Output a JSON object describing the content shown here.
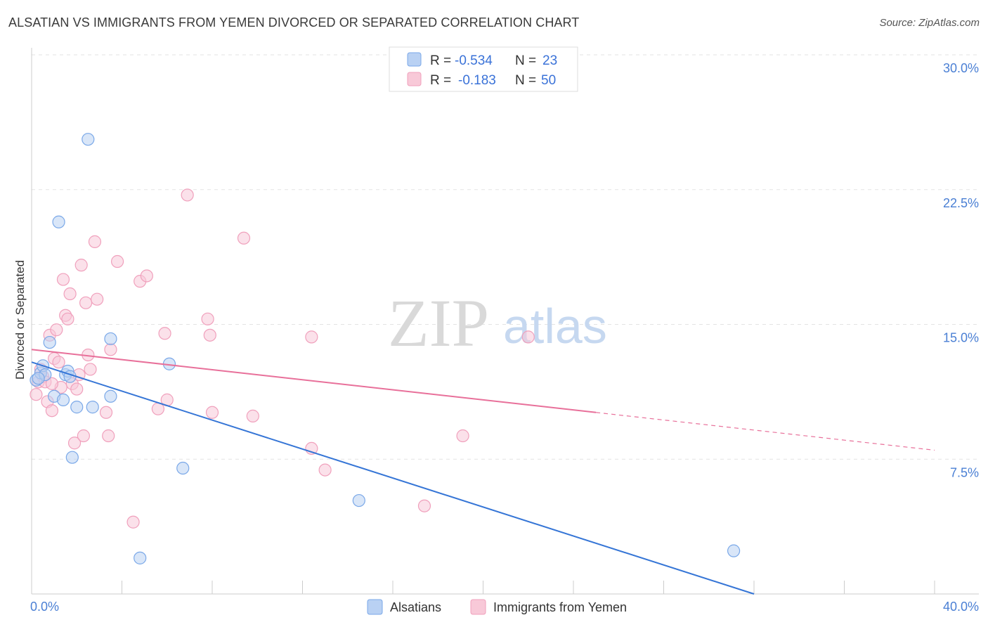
{
  "title": "ALSATIAN VS IMMIGRANTS FROM YEMEN DIVORCED OR SEPARATED CORRELATION CHART",
  "source": "Source: ZipAtlas.com",
  "watermark": {
    "zip": "ZIP",
    "atlas": "atlas"
  },
  "colors": {
    "blue": "#7aa8e8",
    "blue_line": "#3575d6",
    "blue_fill": "#b9d1f3",
    "pink": "#f0a0bc",
    "pink_line": "#e8709a",
    "pink_fill": "#f8c9d8",
    "axis_text": "#4a7fd4"
  },
  "legend": {
    "rows": [
      {
        "r_label": "R =",
        "r_value": "-0.534",
        "n_label": "N =",
        "n_value": "23"
      },
      {
        "r_label": "R =",
        "r_value": "-0.183",
        "n_label": "N =",
        "n_value": "50"
      }
    ]
  },
  "chart_data": {
    "type": "scatter",
    "title": "ALSATIAN VS IMMIGRANTS FROM YEMEN DIVORCED OR SEPARATED CORRELATION CHART",
    "xlabel": "",
    "ylabel": "Divorced or Separated",
    "xlim": [
      0,
      40
    ],
    "ylim": [
      0,
      30
    ],
    "x_tick_labels": [
      "0.0%",
      "40.0%"
    ],
    "y_ticks": [
      7.5,
      15.0,
      22.5,
      30.0
    ],
    "y_tick_labels": [
      "7.5%",
      "15.0%",
      "22.5%",
      "30.0%"
    ],
    "series": [
      {
        "name": "Alsatians",
        "color": "#7aa8e8",
        "points": [
          [
            0.2,
            11.9
          ],
          [
            0.4,
            12.3
          ],
          [
            0.5,
            12.7
          ],
          [
            0.6,
            12.2
          ],
          [
            0.8,
            14.0
          ],
          [
            1.0,
            11.0
          ],
          [
            1.4,
            10.8
          ],
          [
            1.5,
            12.2
          ],
          [
            1.6,
            12.4
          ],
          [
            1.7,
            12.1
          ],
          [
            2.0,
            10.4
          ],
          [
            1.2,
            20.7
          ],
          [
            1.8,
            7.6
          ],
          [
            2.5,
            25.3
          ],
          [
            2.7,
            10.4
          ],
          [
            3.5,
            11.0
          ],
          [
            3.5,
            14.2
          ],
          [
            4.8,
            2.0
          ],
          [
            6.1,
            12.8
          ],
          [
            6.7,
            7.0
          ],
          [
            14.5,
            5.2
          ],
          [
            31.1,
            2.4
          ],
          [
            0.3,
            12.0
          ]
        ],
        "trend": {
          "x": [
            0,
            32.0
          ],
          "y": [
            12.9,
            0.0
          ],
          "style": "solid"
        }
      },
      {
        "name": "Immigrants from Yemen",
        "color": "#f0a0bc",
        "points": [
          [
            0.2,
            11.1
          ],
          [
            0.3,
            11.8
          ],
          [
            0.4,
            12.5
          ],
          [
            0.5,
            12.1
          ],
          [
            0.6,
            11.8
          ],
          [
            0.7,
            10.7
          ],
          [
            0.8,
            14.4
          ],
          [
            0.9,
            10.2
          ],
          [
            1.0,
            13.1
          ],
          [
            1.1,
            14.7
          ],
          [
            1.2,
            12.9
          ],
          [
            1.3,
            11.5
          ],
          [
            1.4,
            17.5
          ],
          [
            1.5,
            15.5
          ],
          [
            1.6,
            15.3
          ],
          [
            1.7,
            16.7
          ],
          [
            1.8,
            11.7
          ],
          [
            1.9,
            8.4
          ],
          [
            2.0,
            11.4
          ],
          [
            2.1,
            12.2
          ],
          [
            2.2,
            18.3
          ],
          [
            2.3,
            8.8
          ],
          [
            2.4,
            16.2
          ],
          [
            2.5,
            13.3
          ],
          [
            2.6,
            12.5
          ],
          [
            2.8,
            19.6
          ],
          [
            2.9,
            16.4
          ],
          [
            3.3,
            10.1
          ],
          [
            3.4,
            8.8
          ],
          [
            3.5,
            13.6
          ],
          [
            3.8,
            18.5
          ],
          [
            4.5,
            4.0
          ],
          [
            4.8,
            17.4
          ],
          [
            5.1,
            17.7
          ],
          [
            5.6,
            10.3
          ],
          [
            5.9,
            14.5
          ],
          [
            6.0,
            10.8
          ],
          [
            6.9,
            22.2
          ],
          [
            7.8,
            15.3
          ],
          [
            7.9,
            14.4
          ],
          [
            8.0,
            10.1
          ],
          [
            9.4,
            19.8
          ],
          [
            9.8,
            9.9
          ],
          [
            12.4,
            8.1
          ],
          [
            12.4,
            14.3
          ],
          [
            13.0,
            6.9
          ],
          [
            17.4,
            4.9
          ],
          [
            19.1,
            8.8
          ],
          [
            22.0,
            14.3
          ],
          [
            0.9,
            11.7
          ]
        ],
        "trend": {
          "x": [
            0,
            25.0
          ],
          "y": [
            13.6,
            10.1
          ],
          "style": "solid"
        },
        "trend_extension": {
          "x": [
            25.0,
            40.0
          ],
          "y": [
            10.1,
            8.0
          ],
          "style": "dashed"
        }
      }
    ],
    "legend_position": "bottom-center"
  }
}
